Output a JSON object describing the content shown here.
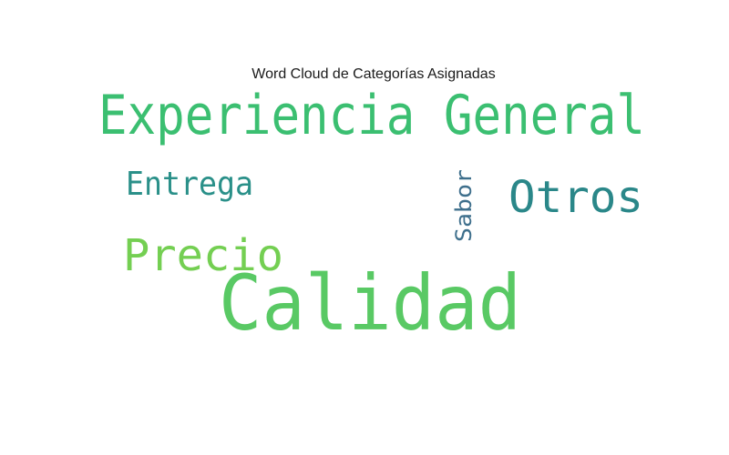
{
  "chart_data": {
    "type": "wordcloud",
    "title": "Word Cloud de Categorías Asignadas",
    "words": [
      {
        "text": "Experiencia General",
        "color": "#3bbf71",
        "orientation": "horizontal"
      },
      {
        "text": "Entrega",
        "color": "#2a9089",
        "orientation": "horizontal"
      },
      {
        "text": "Otros",
        "color": "#2a8789",
        "orientation": "horizontal"
      },
      {
        "text": "Sabor",
        "color": "#3e6f8c",
        "orientation": "vertical"
      },
      {
        "text": "Precio",
        "color": "#74cf52",
        "orientation": "horizontal"
      },
      {
        "text": "Calidad",
        "color": "#59c964",
        "orientation": "horizontal"
      }
    ]
  }
}
